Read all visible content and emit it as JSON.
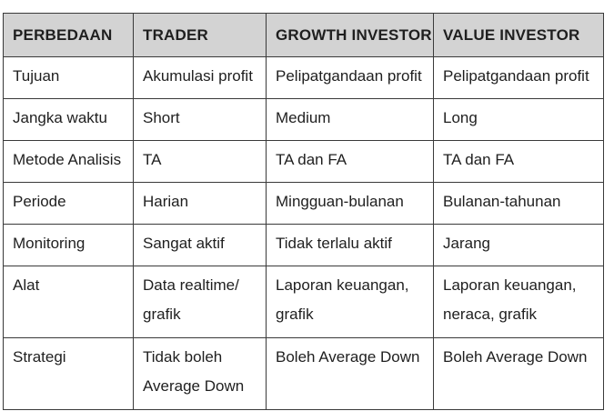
{
  "table": {
    "headers": [
      "PERBEDAAN",
      "TRADER",
      "GROWTH INVESTOR",
      "VALUE INVESTOR"
    ],
    "rows": [
      [
        "Tujuan",
        "Akumulasi profit",
        "Pelipatgandaan profit",
        "Pelipatgandaan profit"
      ],
      [
        "Jangka waktu",
        "Short",
        "Medium",
        "Long"
      ],
      [
        "Metode Analisis",
        "TA",
        "TA dan FA",
        "TA dan FA"
      ],
      [
        "Periode",
        "Harian",
        "Mingguan-bulanan",
        "Bulanan-tahunan"
      ],
      [
        "Monitoring",
        "Sangat aktif",
        "Tidak terlalu aktif",
        "Jarang"
      ],
      [
        "Alat",
        [
          "Data realtime/",
          "grafik"
        ],
        [
          "Laporan keuangan,",
          "grafik"
        ],
        [
          "Laporan keuangan,",
          "neraca, grafik"
        ]
      ],
      [
        "Strategi",
        [
          "Tidak boleh",
          "Average Down"
        ],
        "Boleh Average Down",
        "Boleh Average Down"
      ]
    ]
  }
}
